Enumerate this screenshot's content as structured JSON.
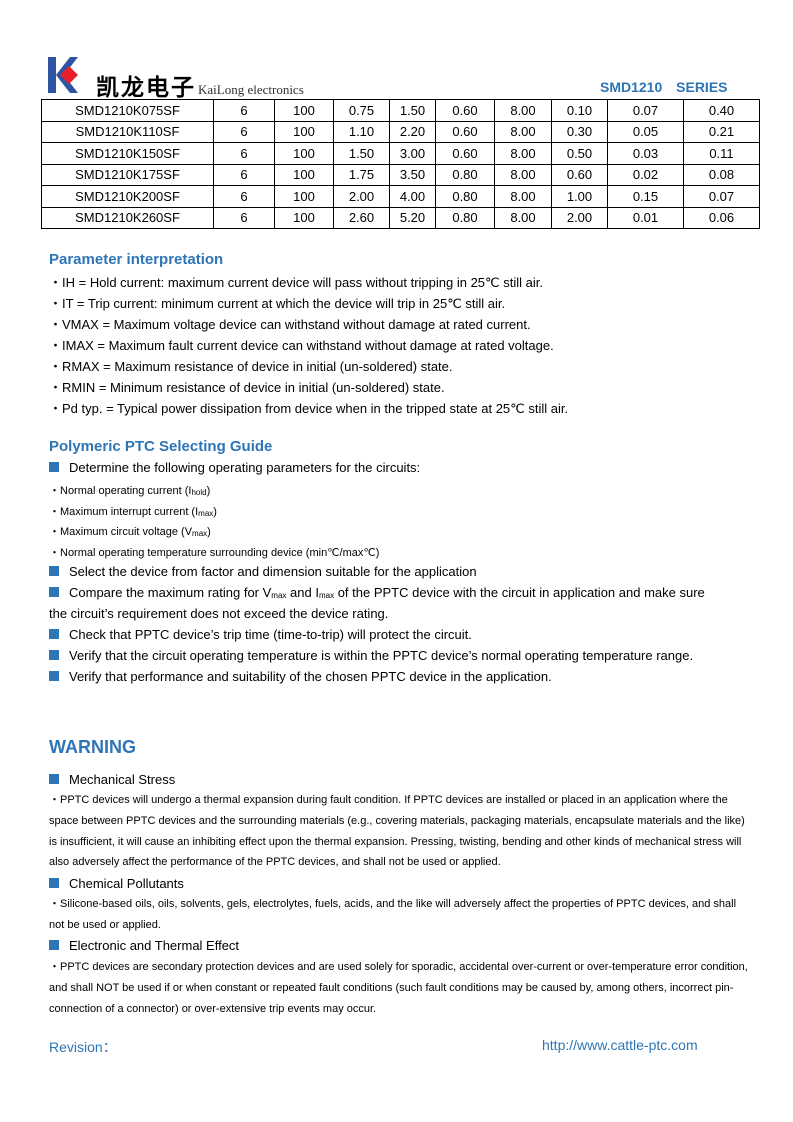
{
  "header": {
    "logo_text": "凯龙电子",
    "brand": "KaiLong electronics",
    "series": "SMD1210 SERIES"
  },
  "table": {
    "rows": [
      [
        "SMD1210K075SF",
        "6",
        "100",
        "0.75",
        "1.50",
        "0.60",
        "8.00",
        "0.10",
        "0.07",
        "0.40"
      ],
      [
        "SMD1210K110SF",
        "6",
        "100",
        "1.10",
        "2.20",
        "0.60",
        "8.00",
        "0.30",
        "0.05",
        "0.21"
      ],
      [
        "SMD1210K150SF",
        "6",
        "100",
        "1.50",
        "3.00",
        "0.60",
        "8.00",
        "0.50",
        "0.03",
        "0.11"
      ],
      [
        "SMD1210K175SF",
        "6",
        "100",
        "1.75",
        "3.50",
        "0.80",
        "8.00",
        "0.60",
        "0.02",
        "0.08"
      ],
      [
        "SMD1210K200SF",
        "6",
        "100",
        "2.00",
        "4.00",
        "0.80",
        "8.00",
        "1.00",
        "0.15",
        "0.07"
      ],
      [
        "SMD1210K260SF",
        "6",
        "100",
        "2.60",
        "5.20",
        "0.80",
        "8.00",
        "2.00",
        "0.01",
        "0.06"
      ]
    ]
  },
  "param": {
    "title": "Parameter interpretation",
    "items": [
      "・IH = Hold current: maximum current device will pass without tripping in 25℃  still air.",
      "・IT = Trip current: minimum current at which the device will trip in 25℃  still air.",
      "・VMAX = Maximum voltage device can withstand without damage at rated current.",
      "・IMAX = Maximum fault current device can withstand without damage at rated voltage.",
      "・RMAX = Maximum resistance of device in initial (un-soldered) state.",
      "・RMIN = Minimum resistance of device in initial (un-soldered) state.",
      "・Pd typ. = Typical power dissipation from device when in the tripped state at 25℃  still air."
    ]
  },
  "guide": {
    "title": "Polymeric PTC Selecting Guide",
    "determine": "Determine the following operating parameters for the circuits:",
    "sub": [
      {
        "t": "・Normal operating current (I",
        "s": "hold",
        "e": ")"
      },
      {
        "t": "・Maximum interrupt current (I",
        "s": "max",
        "e": ")"
      },
      {
        "t": "・Maximum circuit voltage (V",
        "s": "max",
        "e": ")"
      },
      {
        "t": "・Normal operating temperature surrounding device (min℃/max℃)",
        "s": "",
        "e": ""
      }
    ],
    "select": "Select the device from factor and dimension suitable for the application",
    "compare_a": "Compare the maximum rating for V",
    "compare_s1": "max",
    "compare_b": " and I",
    "compare_s2": "max",
    "compare_c": " of the PPTC device with the circuit in application and make sure",
    "compare_d": "the circuit’s requirement does not exceed the device rating.",
    "items": [
      "Check that PPTC device’s trip time (time-to-trip) will protect the circuit.",
      "Verify that the circuit operating temperature is within the PPTC device’s normal operating temperature range.",
      "Verify that performance and suitability of the chosen PPTC device in the application."
    ]
  },
  "warning": {
    "title": "WARNING",
    "sections": [
      {
        "head": "Mechanical Stress",
        "body": "・PPTC devices will undergo a thermal expansion during fault condition. If PPTC devices are installed or placed in an application where the space between PPTC devices and the surrounding materials (e.g., covering materials, packaging materials, encapsulate materials and the like) is insufficient, it will cause an inhibiting effect upon the thermal expansion. Pressing, twisting, bending and other kinds of mechanical stress will also adversely affect the performance of the PPTC devices, and shall not be used or applied."
      },
      {
        "head": "Chemical Pollutants",
        "body": "・Silicone-based oils, oils, solvents, gels, electrolytes, fuels, acids, and the like will adversely affect the properties of PPTC devices, and shall not be used or applied."
      },
      {
        "head": "Electronic and Thermal Effect",
        "body": "・PPTC devices are secondary protection devices and are used solely for sporadic, accidental over-current or over-temperature error condition, and shall NOT be used if or when constant or repeated fault conditions (such fault conditions may be caused by, among others, incorrect pin-connection of a connector) or over-extensive trip events may occur."
      }
    ]
  },
  "footer": {
    "revision": "Revision：",
    "url": "http://www.cattle-ptc.com"
  },
  "colors": {
    "accent": "#2e75b6",
    "logo_red": "#e8202a",
    "logo_blue": "#2f54a3"
  }
}
